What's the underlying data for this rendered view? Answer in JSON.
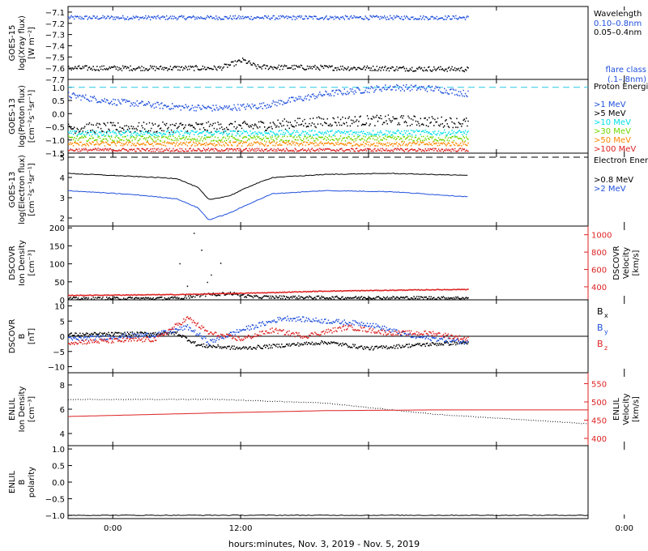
{
  "colors": {
    "black": "#000000",
    "blue": "#1f4fdc",
    "cyan": "#00e0e8",
    "green": "#70d800",
    "orange": "#ff8800",
    "red": "#dd2222",
    "dashed_cyan": "#27c9e6"
  },
  "time_axis": {
    "xlabel": "hours:minutes, Nov.  3, 2019 - Nov.  5, 2019",
    "range_hours": [
      -4.2,
      44.6
    ],
    "ticks": [
      {
        "hour": 0,
        "label": "0:00"
      },
      {
        "hour": 12,
        "label": "12:00"
      },
      {
        "hour": 24,
        "label": ""
      },
      {
        "hour": 36,
        "label": ""
      },
      {
        "hour": 48,
        "label": "0:00"
      }
    ],
    "data_end_hour": 33.3
  },
  "chart_data": [
    {
      "id": "goes15-xray",
      "type": "scatter",
      "ylabel_lines": [
        "GOES-15",
        "log(Xray flux)",
        "[W m⁻²]"
      ],
      "ylim": [
        -7.7,
        -7.05
      ],
      "yticks": [
        {
          "v": -7.1,
          "label": "−7.1"
        },
        {
          "v": -7.2,
          "label": "−7.2"
        },
        {
          "v": -7.3,
          "label": "−7.3"
        },
        {
          "v": -7.4,
          "label": "−7.4"
        },
        {
          "v": -7.5,
          "label": "−7.5"
        },
        {
          "v": -7.6,
          "label": "−7.6"
        },
        {
          "v": -7.7,
          "label": "−7.7"
        }
      ],
      "legend_title": "Wavelength",
      "series": [
        {
          "name": "0.10–0.8nm",
          "color": "blue",
          "base": -7.15,
          "noise": 0.018,
          "points": [
            [
              -4.2,
              -7.15
            ],
            [
              33.3,
              -7.15
            ]
          ]
        },
        {
          "name": "0.05–0.4nm",
          "color": "black",
          "base": -7.6,
          "noise": 0.022,
          "points": [
            [
              -4.2,
              -7.6
            ],
            [
              10,
              -7.6
            ],
            [
              11.3,
              -7.56
            ],
            [
              12.2,
              -7.53
            ],
            [
              13.5,
              -7.59
            ],
            [
              33.3,
              -7.61
            ]
          ]
        }
      ],
      "extra_labels": [
        "flare class",
        "(.1–.8nm)"
      ]
    },
    {
      "id": "goes13-proton",
      "type": "scatter",
      "ylabel_lines": [
        "GOES-13",
        "log(Proton flux)",
        "[cm⁻²s⁻¹sr⁻¹]"
      ],
      "ylim": [
        -1.5,
        1.3
      ],
      "reference_line": 1.0,
      "yticks": [
        {
          "v": 1.0,
          "label": "1.0"
        },
        {
          "v": 0.5,
          "label": "0.5"
        },
        {
          "v": 0.0,
          "label": "0.0"
        },
        {
          "v": -0.5,
          "label": "−0.5"
        },
        {
          "v": -1.0,
          "label": "−1.0"
        },
        {
          "v": -1.5,
          "label": "−1.5"
        }
      ],
      "legend_title": "Proton Energies",
      "series": [
        {
          "name": ">1 MeV",
          "color": "blue",
          "base": 0,
          "noise": 0.12,
          "points": [
            [
              -4.2,
              0.7
            ],
            [
              0,
              0.45
            ],
            [
              6,
              0.25
            ],
            [
              10,
              0.2
            ],
            [
              14,
              0.3
            ],
            [
              20,
              0.75
            ],
            [
              26,
              1.0
            ],
            [
              30,
              0.95
            ],
            [
              33.3,
              0.75
            ]
          ]
        },
        {
          "name": ">5 MeV",
          "color": "black",
          "base": 0,
          "noise": 0.2,
          "points": [
            [
              -4.2,
              -0.55
            ],
            [
              12,
              -0.5
            ],
            [
              20,
              -0.3
            ],
            [
              26,
              -0.25
            ],
            [
              33.3,
              -0.35
            ]
          ]
        },
        {
          "name": ">10 MeV",
          "color": "cyan",
          "base": 0,
          "noise": 0.1,
          "points": [
            [
              -4.2,
              -0.75
            ],
            [
              33.3,
              -0.72
            ]
          ]
        },
        {
          "name": ">30 MeV",
          "color": "green",
          "base": 0,
          "noise": 0.1,
          "points": [
            [
              -4.2,
              -0.95
            ],
            [
              33.3,
              -0.95
            ]
          ]
        },
        {
          "name": ">50 MeV",
          "color": "orange",
          "base": 0,
          "noise": 0.08,
          "points": [
            [
              -4.2,
              -1.15
            ],
            [
              33.3,
              -1.15
            ]
          ]
        },
        {
          "name": ">100 MeV",
          "color": "red",
          "base": 0,
          "noise": 0.06,
          "points": [
            [
              -4.2,
              -1.38
            ],
            [
              33.3,
              -1.38
            ]
          ]
        }
      ]
    },
    {
      "id": "goes13-electron",
      "type": "line",
      "ylabel_lines": [
        "GOES-13",
        "log(Electron flux)",
        "[cm⁻²s⁻¹sr⁻¹]"
      ],
      "ylim": [
        1.6,
        5.2
      ],
      "reference_line": 5.0,
      "yticks": [
        {
          "v": 5,
          "label": "5"
        },
        {
          "v": 4,
          "label": "4"
        },
        {
          "v": 3,
          "label": "3"
        },
        {
          "v": 2,
          "label": "2"
        }
      ],
      "legend_title": "Electron Energies",
      "series": [
        {
          "name": ">0.8 MeV",
          "color": "black",
          "points": [
            [
              -4.2,
              4.2
            ],
            [
              2,
              4.05
            ],
            [
              6,
              3.95
            ],
            [
              8,
              3.5
            ],
            [
              9,
              2.9
            ],
            [
              11,
              3.1
            ],
            [
              13,
              3.6
            ],
            [
              15,
              4.0
            ],
            [
              20,
              4.15
            ],
            [
              26,
              4.2
            ],
            [
              33.3,
              4.1
            ]
          ]
        },
        {
          "name": ">2 MeV",
          "color": "blue",
          "points": [
            [
              -4.2,
              3.35
            ],
            [
              2,
              3.15
            ],
            [
              6,
              2.95
            ],
            [
              8,
              2.5
            ],
            [
              9,
              1.9
            ],
            [
              11,
              2.25
            ],
            [
              13,
              2.75
            ],
            [
              15,
              3.2
            ],
            [
              20,
              3.35
            ],
            [
              26,
              3.3
            ],
            [
              33.3,
              3.05
            ]
          ]
        }
      ]
    },
    {
      "id": "dscovr-plasma",
      "type": "scatter",
      "ylabel_lines": [
        "DSCOVR",
        "Ion Density",
        "[cm⁻³]"
      ],
      "ylim": [
        0,
        205
      ],
      "yticks": [
        {
          "v": 0,
          "label": "0"
        },
        {
          "v": 50,
          "label": "50"
        },
        {
          "v": 100,
          "label": "100"
        },
        {
          "v": 150,
          "label": "150"
        },
        {
          "v": 200,
          "label": "200"
        }
      ],
      "right_axis": {
        "label_lines": [
          "DSCOVR",
          "Velocity",
          "[km/s]"
        ],
        "ylim": [
          250,
          1100
        ],
        "ticks": [
          {
            "v": 400,
            "label": "400"
          },
          {
            "v": 600,
            "label": "600"
          },
          {
            "v": 800,
            "label": "800"
          },
          {
            "v": 1000,
            "label": "1000"
          }
        ]
      },
      "series": [
        {
          "name": "Ion Density",
          "color": "black",
          "axis": "left",
          "points": [
            [
              -4.2,
              3
            ],
            [
              6,
              4
            ],
            [
              8,
              12
            ],
            [
              11,
              18
            ],
            [
              13,
              8
            ],
            [
              20,
              6
            ],
            [
              33.3,
              5
            ]
          ]
        },
        {
          "name": "Velocity",
          "color": "red",
          "axis": "right",
          "points": [
            [
              -4.2,
              300
            ],
            [
              6,
              310
            ],
            [
              10,
              320
            ],
            [
              14,
              330
            ],
            [
              20,
              350
            ],
            [
              26,
              360
            ],
            [
              33.3,
              370
            ]
          ]
        }
      ]
    },
    {
      "id": "dscovr-mag",
      "type": "scatter",
      "ylabel_lines": [
        "DSCOVR",
        "B",
        "[nT]"
      ],
      "ylim": [
        -12,
        12
      ],
      "reference_line": 0,
      "yticks": [
        {
          "v": 10,
          "label": "10"
        },
        {
          "v": 5,
          "label": "5"
        },
        {
          "v": 0,
          "label": "0"
        },
        {
          "v": -5,
          "label": "−5"
        },
        {
          "v": -10,
          "label": "−10"
        }
      ],
      "series": [
        {
          "name": "B",
          "sub": "x",
          "color": "black",
          "noise": 0.6,
          "points": [
            [
              -4.2,
              0.5
            ],
            [
              6,
              1
            ],
            [
              8,
              -3
            ],
            [
              12,
              -4
            ],
            [
              16,
              -3
            ],
            [
              20,
              -2
            ],
            [
              24,
              -4
            ],
            [
              28,
              -3
            ],
            [
              33.3,
              -2
            ]
          ]
        },
        {
          "name": "B",
          "sub": "y",
          "color": "blue",
          "noise": 0.8,
          "points": [
            [
              -4.2,
              -1
            ],
            [
              4,
              0.5
            ],
            [
              7,
              3
            ],
            [
              9,
              -2
            ],
            [
              12,
              2
            ],
            [
              14,
              4
            ],
            [
              16,
              6
            ],
            [
              20,
              5
            ],
            [
              24,
              4
            ],
            [
              28,
              0
            ],
            [
              33.3,
              -2
            ]
          ]
        },
        {
          "name": "B",
          "sub": "z",
          "color": "red",
          "noise": 0.8,
          "points": [
            [
              -4.2,
              -2
            ],
            [
              4,
              -1
            ],
            [
              7,
              6
            ],
            [
              9,
              1
            ],
            [
              12,
              -1
            ],
            [
              15,
              2
            ],
            [
              18,
              0
            ],
            [
              22,
              3
            ],
            [
              26,
              1
            ],
            [
              30,
              1
            ],
            [
              33.3,
              -1
            ]
          ]
        }
      ]
    },
    {
      "id": "enlil-plasma",
      "type": "line",
      "ylabel_lines": [
        "ENLIL",
        "Ion Density",
        "[cm⁻³]"
      ],
      "ylim": [
        3,
        9
      ],
      "yticks": [
        {
          "v": 8,
          "label": "8"
        },
        {
          "v": 6,
          "label": "6"
        },
        {
          "v": 4,
          "label": "4"
        }
      ],
      "right_axis": {
        "label_lines": [
          "ENLIL",
          "Velocity",
          "[km/s]"
        ],
        "ylim": [
          380,
          580
        ],
        "ticks": [
          {
            "v": 400,
            "label": "400"
          },
          {
            "v": 450,
            "label": "450"
          },
          {
            "v": 500,
            "label": "500"
          },
          {
            "v": 550,
            "label": "550"
          }
        ]
      },
      "series": [
        {
          "name": "Ion Density",
          "color": "black",
          "axis": "left",
          "points": [
            [
              -4.2,
              6.8
            ],
            [
              10,
              6.8
            ],
            [
              20,
              6.5
            ],
            [
              30,
              5.6
            ],
            [
              44.6,
              4.8
            ]
          ]
        },
        {
          "name": "Velocity",
          "color": "red",
          "axis": "right",
          "points": [
            [
              -4.2,
              460
            ],
            [
              10,
              470
            ],
            [
              20,
              476
            ],
            [
              30,
              478
            ],
            [
              44.6,
              478
            ]
          ]
        }
      ]
    },
    {
      "id": "enlil-polarity",
      "type": "line",
      "ylabel_lines": [
        "ENLIL",
        "B",
        "polarity"
      ],
      "ylim": [
        -1.1,
        1.1
      ],
      "yticks": [
        {
          "v": 1.0,
          "label": "1.0"
        },
        {
          "v": 0.5,
          "label": "0.5"
        },
        {
          "v": 0.0,
          "label": "0.0"
        },
        {
          "v": -0.5,
          "label": "−0.5"
        },
        {
          "v": -1.0,
          "label": "−1.0"
        }
      ],
      "series": [
        {
          "name": "Polarity",
          "color": "black",
          "points": [
            [
              -4.2,
              -1.0
            ],
            [
              44.6,
              -1.0
            ]
          ]
        }
      ]
    }
  ]
}
